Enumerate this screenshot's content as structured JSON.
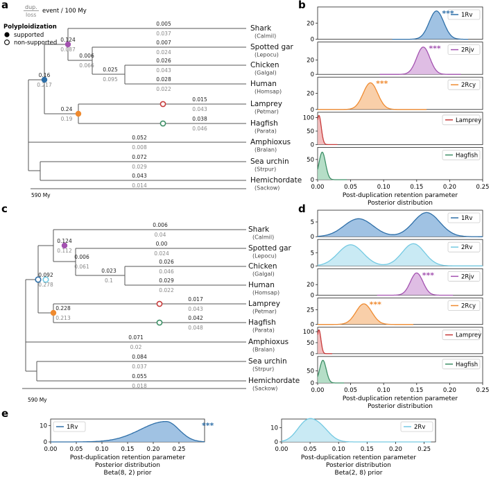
{
  "colors": {
    "1Rv": "#2e6fa8",
    "1Rv_fill": "#8fb7de",
    "2Rv": "#73c9e2",
    "2Rv_fill": "#bfe6f2",
    "2Rjv": "#a352b0",
    "2Rjv_fill": "#d9b2df",
    "2Rcy": "#ef8a2f",
    "2Rcy_fill": "#f8c79a",
    "Lamprey": "#c73a3a",
    "Lamprey_fill": "#f0b3b3",
    "Hagfish": "#3d8f66",
    "Hagfish_fill": "#a8d8bd",
    "tree_line": "#555555",
    "dup_value": "#222222",
    "loss_value": "#888888"
  },
  "legend": {
    "rate_top": "dup.",
    "rate_bottom": "loss",
    "rate_unit": "event / 100 My",
    "polyploidization_title": "Polyploidization",
    "supported": "supported",
    "non_supported": "non-supported"
  },
  "panels": {
    "a": {
      "label": "a",
      "scale_label": "590 My",
      "taxa": [
        {
          "name": "Shark",
          "code": "(Calmil)"
        },
        {
          "name": "Spotted gar",
          "code": "(Lepocu)"
        },
        {
          "name": "Chicken",
          "code": "(Galgal)"
        },
        {
          "name": "Human",
          "code": "(Homsap)"
        },
        {
          "name": "Lamprey",
          "code": "(Petmar)"
        },
        {
          "name": "Hagfish",
          "code": "(Parata)"
        },
        {
          "name": "Amphioxus",
          "code": "(Bralan)"
        },
        {
          "name": "Sea urchin",
          "code": "(Strpur)"
        },
        {
          "name": "Hemichordate",
          "code": "(Sackow)"
        }
      ],
      "rates": [
        {
          "dup": "0.005",
          "loss": "0.037"
        },
        {
          "dup": "0.007",
          "loss": "0.024"
        },
        {
          "dup": "0.026",
          "loss": "0.043"
        },
        {
          "dup": "0.028",
          "loss": "0.022"
        },
        {
          "dup": "0.015",
          "loss": "0.043"
        },
        {
          "dup": "0.038",
          "loss": "0.046"
        },
        {
          "dup": "0.052",
          "loss": "0.008"
        },
        {
          "dup": "0.072",
          "loss": "0.029"
        },
        {
          "dup": "0.043",
          "loss": "0.014"
        },
        {
          "dup": "0.124",
          "loss": "0.087"
        },
        {
          "dup": "0.006",
          "loss": "0.066"
        },
        {
          "dup": "0.025",
          "loss": "0.095"
        },
        {
          "dup": "0.16",
          "loss": "0.217"
        },
        {
          "dup": "0.24",
          "loss": "0.19"
        }
      ]
    },
    "c": {
      "label": "c",
      "scale_label": "590 My",
      "taxa": [
        {
          "name": "Shark",
          "code": "(Calmil)"
        },
        {
          "name": "Spotted gar",
          "code": "(Lepocu)"
        },
        {
          "name": "Chicken",
          "code": "(Galgal)"
        },
        {
          "name": "Human",
          "code": "(Homsap)"
        },
        {
          "name": "Lamprey",
          "code": "(Petmar)"
        },
        {
          "name": "Hagfish",
          "code": "(Parata)"
        },
        {
          "name": "Amphioxus",
          "code": "(Bralan)"
        },
        {
          "name": "Sea urchin",
          "code": "(Strpur)"
        },
        {
          "name": "Hemichordate",
          "code": "(Sackow)"
        }
      ],
      "rates": [
        {
          "dup": "0.006",
          "loss": "0.04"
        },
        {
          "dup": "0.00",
          "loss": "0.024"
        },
        {
          "dup": "0.026",
          "loss": "0.046"
        },
        {
          "dup": "0.029",
          "loss": "0.022"
        },
        {
          "dup": "0.017",
          "loss": "0.043"
        },
        {
          "dup": "0.042",
          "loss": "0.048"
        },
        {
          "dup": "0.071",
          "loss": "0.02"
        },
        {
          "dup": "0.084",
          "loss": "0.037"
        },
        {
          "dup": "0.055",
          "loss": "0.018"
        },
        {
          "dup": "0.124",
          "loss": "0.112"
        },
        {
          "dup": "0.006",
          "loss": "0.061"
        },
        {
          "dup": "0.023",
          "loss": "0.1"
        },
        {
          "dup": "0.092",
          "loss": "0.278"
        },
        {
          "dup": "0.228",
          "loss": "0.213"
        }
      ]
    }
  },
  "chart_data": [
    {
      "id": "b",
      "type": "area",
      "panel_label": "b",
      "xlabel": "Post-duplication retention parameter",
      "xlabel2": "Posterior distribution",
      "xlim": [
        0,
        0.25
      ],
      "xticks": [
        "0.00",
        "0.05",
        "0.10",
        "0.15",
        "0.20",
        "0.25"
      ],
      "significance": "***",
      "series": [
        {
          "name": "1Rv",
          "key": "1Rv",
          "peak": 0.18,
          "sd": 0.011,
          "ymax": 35,
          "range": [
            0.113,
            0.228
          ],
          "yticks": [
            0,
            20
          ],
          "ylim": [
            0,
            40
          ],
          "sig": true
        },
        {
          "name": "2Rjv",
          "key": "2Rjv",
          "peak": 0.16,
          "sd": 0.01,
          "ymax": 38,
          "range": [
            0.094,
            0.217
          ],
          "yticks": [
            0,
            20
          ],
          "ylim": [
            0,
            45
          ],
          "sig": true
        },
        {
          "name": "2Rcy",
          "key": "2Rcy",
          "peak": 0.08,
          "sd": 0.011,
          "ymax": 33,
          "range": [
            0,
            0.165
          ],
          "yticks": [
            0,
            20
          ],
          "ylim": [
            0,
            40
          ],
          "sig": true
        },
        {
          "name": "Lamprey",
          "key": "Lamprey",
          "peak": 0.002,
          "sd": 0.0035,
          "ymax": 108,
          "range": [
            0,
            0.03
          ],
          "yticks": [
            0,
            50,
            100
          ],
          "ylim": [
            0,
            120
          ],
          "sig": false
        },
        {
          "name": "Hagfish",
          "key": "Hagfish",
          "peak": 0.007,
          "sd": 0.005,
          "ymax": 68,
          "range": [
            0,
            0.044
          ],
          "yticks": [
            0,
            50
          ],
          "ylim": [
            0,
            80
          ],
          "sig": false
        }
      ]
    },
    {
      "id": "d",
      "type": "area",
      "panel_label": "d",
      "xlabel": "Post-duplication retention parameter",
      "xlabel2": "Posterior distribution",
      "xlim": [
        0,
        0.25
      ],
      "xticks": [
        "0.00",
        "0.05",
        "0.10",
        "0.15",
        "0.20",
        "0.25"
      ],
      "significance": "***",
      "series": [
        {
          "name": "1Rv",
          "key": "1Rv",
          "bimodal": [
            [
              0.062,
              0.022,
              6.1
            ],
            [
              0.165,
              0.02,
              8.2
            ]
          ],
          "range": [
            0,
            0.25
          ],
          "yticks": [
            0,
            5
          ],
          "ylim": [
            0,
            9
          ],
          "sig": false
        },
        {
          "name": "2Rv",
          "key": "2Rv",
          "bimodal": [
            [
              0.05,
              0.019,
              8.0
            ],
            [
              0.145,
              0.017,
              8.4
            ]
          ],
          "range": [
            0,
            0.25
          ],
          "yticks": [
            0,
            5
          ],
          "ylim": [
            0,
            10
          ],
          "sig": false
        },
        {
          "name": "2Rjv",
          "key": "2Rjv",
          "peak": 0.15,
          "sd": 0.0095,
          "ymax": 42,
          "range": [
            0.09,
            0.205
          ],
          "yticks": [
            0,
            20
          ],
          "ylim": [
            0,
            50
          ],
          "sig": true
        },
        {
          "name": "2Rcy",
          "key": "2Rcy",
          "peak": 0.07,
          "sd": 0.012,
          "ymax": 35,
          "range": [
            0,
            0.145
          ],
          "yticks": [
            0,
            25
          ],
          "ylim": [
            0,
            45
          ],
          "sig": true
        },
        {
          "name": "Lamprey",
          "key": "Lamprey",
          "peak": 0.002,
          "sd": 0.003,
          "ymax": 108,
          "range": [
            0,
            0.022
          ],
          "yticks": [
            0,
            50,
            100
          ],
          "ylim": [
            0,
            120
          ],
          "sig": false
        },
        {
          "name": "Hagfish",
          "key": "Hagfish",
          "peak": 0.008,
          "sd": 0.005,
          "ymax": 94,
          "range": [
            0,
            0.04
          ],
          "yticks": [
            0,
            50
          ],
          "ylim": [
            0,
            110
          ],
          "sig": false
        }
      ]
    },
    {
      "id": "e1",
      "type": "area",
      "panel_label": "e",
      "xlabel": "Post-duplication retention parameter",
      "xlabel2": "Posterior distribution",
      "xlabel3": "Beta(8, 2) prior",
      "xlim": [
        0,
        0.3
      ],
      "xticks": [
        "0.00",
        "0.05",
        "0.10",
        "0.15",
        "0.20",
        "0.25"
      ],
      "significance": "***",
      "series": [
        {
          "name": "1Rv",
          "key": "1Rv",
          "skew": [
            0.225,
            0.05,
            0.025,
            12.5
          ],
          "range": [
            0,
            0.3
          ],
          "yticks": [
            0,
            10
          ],
          "ylim": [
            0,
            14
          ],
          "sig": true
        }
      ]
    },
    {
      "id": "e2",
      "type": "area",
      "xlabel": "Post-duplication retention parameter",
      "xlabel2": "Posterior distribution",
      "xlabel3": "Beta(2, 8) prior",
      "xlim": [
        0,
        0.27
      ],
      "xticks": [
        "0.00",
        "0.05",
        "0.10",
        "0.15",
        "0.20",
        "0.25"
      ],
      "series": [
        {
          "name": "2Rv",
          "key": "2Rv",
          "bimodal": [
            [
              0.044,
              0.017,
              13.5
            ],
            [
              0.07,
              0.016,
              8.0
            ]
          ],
          "range": [
            0,
            0.262
          ],
          "yticks": [
            0,
            10
          ],
          "ylim": [
            0,
            16
          ],
          "sig": false
        }
      ]
    }
  ]
}
